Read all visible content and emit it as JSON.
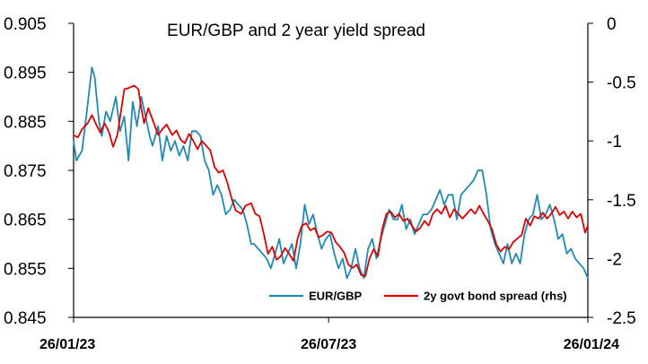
{
  "chart_data": {
    "type": "line",
    "title": "EUR/GBP and 2 year yield spread",
    "xlabel": "",
    "ylabel": "",
    "x_ticks": [
      "26/01/23",
      "26/07/23",
      "26/01/24"
    ],
    "x_range": [
      "2023-01-26",
      "2024-01-26"
    ],
    "y_left": {
      "ylim": [
        0.845,
        0.905
      ],
      "ticks": [
        "0.905",
        "0.895",
        "0.885",
        "0.875",
        "0.865",
        "0.855",
        "0.845"
      ]
    },
    "y_right": {
      "ylim": [
        -2.5,
        0
      ],
      "ticks": [
        "0",
        "-0.5",
        "-1",
        "-1.5",
        "-2",
        "-2.5"
      ]
    },
    "grid": false,
    "legend": {
      "placement": "bottom-right"
    },
    "series": [
      {
        "name": "EUR/GBP",
        "axis": "left",
        "color": "#1f8bb5",
        "points": [
          [
            "2023-01-26",
            0.881
          ],
          [
            "2023-01-28",
            0.877
          ],
          [
            "2023-02-01",
            0.879
          ],
          [
            "2023-02-04",
            0.886
          ],
          [
            "2023-02-08",
            0.896
          ],
          [
            "2023-02-10",
            0.894
          ],
          [
            "2023-02-13",
            0.885
          ],
          [
            "2023-02-15",
            0.882
          ],
          [
            "2023-02-18",
            0.887
          ],
          [
            "2023-02-21",
            0.885
          ],
          [
            "2023-02-25",
            0.89
          ],
          [
            "2023-02-28",
            0.883
          ],
          [
            "2023-03-03",
            0.886
          ],
          [
            "2023-03-06",
            0.877
          ],
          [
            "2023-03-09",
            0.889
          ],
          [
            "2023-03-12",
            0.884
          ],
          [
            "2023-03-15",
            0.89
          ],
          [
            "2023-03-18",
            0.886
          ],
          [
            "2023-03-21",
            0.882
          ],
          [
            "2023-03-23",
            0.88
          ],
          [
            "2023-03-27",
            0.884
          ],
          [
            "2023-03-30",
            0.877
          ],
          [
            "2023-04-02",
            0.882
          ],
          [
            "2023-04-05",
            0.879
          ],
          [
            "2023-04-08",
            0.881
          ],
          [
            "2023-04-11",
            0.878
          ],
          [
            "2023-04-14",
            0.88
          ],
          [
            "2023-04-17",
            0.877
          ],
          [
            "2023-04-20",
            0.883
          ],
          [
            "2023-04-23",
            0.883
          ],
          [
            "2023-04-26",
            0.882
          ],
          [
            "2023-04-29",
            0.877
          ],
          [
            "2023-05-02",
            0.875
          ],
          [
            "2023-05-05",
            0.87
          ],
          [
            "2023-05-08",
            0.872
          ],
          [
            "2023-05-11",
            0.87
          ],
          [
            "2023-05-14",
            0.866
          ],
          [
            "2023-05-17",
            0.867
          ],
          [
            "2023-05-20",
            0.869
          ],
          [
            "2023-05-23",
            0.868
          ],
          [
            "2023-05-26",
            0.867
          ],
          [
            "2023-05-29",
            0.864
          ],
          [
            "2023-06-01",
            0.86
          ],
          [
            "2023-06-03",
            0.86
          ],
          [
            "2023-06-06",
            0.859
          ],
          [
            "2023-06-09",
            0.858
          ],
          [
            "2023-06-12",
            0.857
          ],
          [
            "2023-06-15",
            0.855
          ],
          [
            "2023-06-18",
            0.858
          ],
          [
            "2023-06-21",
            0.861
          ],
          [
            "2023-06-24",
            0.856
          ],
          [
            "2023-06-27",
            0.858
          ],
          [
            "2023-06-30",
            0.86
          ],
          [
            "2023-07-03",
            0.855
          ],
          [
            "2023-07-06",
            0.86
          ],
          [
            "2023-07-09",
            0.868
          ],
          [
            "2023-07-12",
            0.864
          ],
          [
            "2023-07-15",
            0.866
          ],
          [
            "2023-07-18",
            0.862
          ],
          [
            "2023-07-21",
            0.859
          ],
          [
            "2023-07-24",
            0.861
          ],
          [
            "2023-07-27",
            0.862
          ],
          [
            "2023-07-30",
            0.858
          ],
          [
            "2023-08-02",
            0.855
          ],
          [
            "2023-08-05",
            0.857
          ],
          [
            "2023-08-08",
            0.853
          ],
          [
            "2023-08-11",
            0.855
          ],
          [
            "2023-08-14",
            0.859
          ],
          [
            "2023-08-17",
            0.855
          ],
          [
            "2023-08-20",
            0.853
          ],
          [
            "2023-08-23",
            0.859
          ],
          [
            "2023-08-26",
            0.861
          ],
          [
            "2023-08-29",
            0.857
          ],
          [
            "2023-09-01",
            0.861
          ],
          [
            "2023-09-04",
            0.864
          ],
          [
            "2023-09-07",
            0.867
          ],
          [
            "2023-09-10",
            0.865
          ],
          [
            "2023-09-13",
            0.865
          ],
          [
            "2023-09-16",
            0.868
          ],
          [
            "2023-09-19",
            0.863
          ],
          [
            "2023-09-22",
            0.865
          ],
          [
            "2023-09-25",
            0.862
          ],
          [
            "2023-09-28",
            0.864
          ],
          [
            "2023-10-01",
            0.866
          ],
          [
            "2023-10-04",
            0.866
          ],
          [
            "2023-10-07",
            0.867
          ],
          [
            "2023-10-10",
            0.869
          ],
          [
            "2023-10-13",
            0.871
          ],
          [
            "2023-10-16",
            0.868
          ],
          [
            "2023-10-19",
            0.87
          ],
          [
            "2023-10-22",
            0.87
          ],
          [
            "2023-10-25",
            0.865
          ],
          [
            "2023-10-28",
            0.87
          ],
          [
            "2023-10-31",
            0.871
          ],
          [
            "2023-11-03",
            0.872
          ],
          [
            "2023-11-06",
            0.873
          ],
          [
            "2023-11-09",
            0.875
          ],
          [
            "2023-11-12",
            0.875
          ],
          [
            "2023-11-15",
            0.87
          ],
          [
            "2023-11-18",
            0.863
          ],
          [
            "2023-11-21",
            0.86
          ],
          [
            "2023-11-24",
            0.858
          ],
          [
            "2023-11-27",
            0.856
          ],
          [
            "2023-11-30",
            0.86
          ],
          [
            "2023-12-03",
            0.856
          ],
          [
            "2023-12-06",
            0.858
          ],
          [
            "2023-12-09",
            0.856
          ],
          [
            "2023-12-12",
            0.862
          ],
          [
            "2023-12-15",
            0.865
          ],
          [
            "2023-12-18",
            0.866
          ],
          [
            "2023-12-21",
            0.87
          ],
          [
            "2023-12-24",
            0.865
          ],
          [
            "2023-12-27",
            0.866
          ],
          [
            "2023-12-30",
            0.868
          ],
          [
            "2024-01-02",
            0.865
          ],
          [
            "2024-01-05",
            0.861
          ],
          [
            "2024-01-08",
            0.862
          ],
          [
            "2024-01-11",
            0.858
          ],
          [
            "2024-01-14",
            0.859
          ],
          [
            "2024-01-17",
            0.857
          ],
          [
            "2024-01-20",
            0.856
          ],
          [
            "2024-01-23",
            0.855
          ],
          [
            "2024-01-26",
            0.853
          ]
        ]
      },
      {
        "name": "2y govt bond spread (rhs)",
        "axis": "right",
        "color": "#e00000",
        "points": [
          [
            "2023-01-26",
            -0.95
          ],
          [
            "2023-01-29",
            -0.97
          ],
          [
            "2023-02-01",
            -0.9
          ],
          [
            "2023-02-05",
            -0.85
          ],
          [
            "2023-02-08",
            -0.78
          ],
          [
            "2023-02-11",
            -0.86
          ],
          [
            "2023-02-14",
            -0.93
          ],
          [
            "2023-02-17",
            -0.85
          ],
          [
            "2023-02-20",
            -0.92
          ],
          [
            "2023-02-23",
            -1.05
          ],
          [
            "2023-02-26",
            -0.95
          ],
          [
            "2023-02-28",
            -0.8
          ],
          [
            "2023-03-03",
            -0.56
          ],
          [
            "2023-03-06",
            -0.55
          ],
          [
            "2023-03-10",
            -0.53
          ],
          [
            "2023-03-13",
            -0.56
          ],
          [
            "2023-03-15",
            -0.72
          ],
          [
            "2023-03-17",
            -0.85
          ],
          [
            "2023-03-20",
            -0.72
          ],
          [
            "2023-03-24",
            -0.85
          ],
          [
            "2023-03-27",
            -0.95
          ],
          [
            "2023-03-30",
            -0.9
          ],
          [
            "2023-04-02",
            -0.86
          ],
          [
            "2023-04-06",
            -0.95
          ],
          [
            "2023-04-09",
            -0.91
          ],
          [
            "2023-04-12",
            -0.99
          ],
          [
            "2023-04-15",
            -1.02
          ],
          [
            "2023-04-18",
            -0.94
          ],
          [
            "2023-04-21",
            -1.0
          ],
          [
            "2023-04-24",
            -1.07
          ],
          [
            "2023-04-27",
            -1.0
          ],
          [
            "2023-04-30",
            -1.04
          ],
          [
            "2023-05-03",
            -1.08
          ],
          [
            "2023-05-06",
            -1.22
          ],
          [
            "2023-05-09",
            -1.27
          ],
          [
            "2023-05-12",
            -1.25
          ],
          [
            "2023-05-15",
            -1.35
          ],
          [
            "2023-05-18",
            -1.48
          ],
          [
            "2023-05-21",
            -1.59
          ],
          [
            "2023-05-25",
            -1.62
          ],
          [
            "2023-05-28",
            -1.55
          ],
          [
            "2023-06-01",
            -1.53
          ],
          [
            "2023-06-04",
            -1.62
          ],
          [
            "2023-06-07",
            -1.64
          ],
          [
            "2023-06-10",
            -1.79
          ],
          [
            "2023-06-13",
            -1.96
          ],
          [
            "2023-06-16",
            -1.9
          ],
          [
            "2023-06-19",
            -2.01
          ],
          [
            "2023-06-22",
            -1.98
          ],
          [
            "2023-06-25",
            -1.91
          ],
          [
            "2023-06-28",
            -1.96
          ],
          [
            "2023-07-01",
            -2.02
          ],
          [
            "2023-07-04",
            -1.83
          ],
          [
            "2023-07-07",
            -1.72
          ],
          [
            "2023-07-10",
            -1.7
          ],
          [
            "2023-07-13",
            -1.76
          ],
          [
            "2023-07-16",
            -1.74
          ],
          [
            "2023-07-19",
            -1.82
          ],
          [
            "2023-07-22",
            -1.8
          ],
          [
            "2023-07-25",
            -1.77
          ],
          [
            "2023-07-28",
            -1.78
          ],
          [
            "2023-07-31",
            -1.86
          ],
          [
            "2023-08-03",
            -1.9
          ],
          [
            "2023-08-06",
            -1.95
          ],
          [
            "2023-08-09",
            -2.05
          ],
          [
            "2023-08-12",
            -2.08
          ],
          [
            "2023-08-15",
            -2.05
          ],
          [
            "2023-08-18",
            -2.14
          ],
          [
            "2023-08-21",
            -2.15
          ],
          [
            "2023-08-24",
            -2.0
          ],
          [
            "2023-08-27",
            -1.92
          ],
          [
            "2023-08-30",
            -1.98
          ],
          [
            "2023-09-02",
            -1.75
          ],
          [
            "2023-09-05",
            -1.62
          ],
          [
            "2023-09-08",
            -1.6
          ],
          [
            "2023-09-11",
            -1.65
          ],
          [
            "2023-09-14",
            -1.62
          ],
          [
            "2023-09-17",
            -1.68
          ],
          [
            "2023-09-20",
            -1.66
          ],
          [
            "2023-09-23",
            -1.72
          ],
          [
            "2023-09-26",
            -1.77
          ],
          [
            "2023-09-29",
            -1.74
          ],
          [
            "2023-10-02",
            -1.68
          ],
          [
            "2023-10-05",
            -1.72
          ],
          [
            "2023-10-08",
            -1.62
          ],
          [
            "2023-10-11",
            -1.58
          ],
          [
            "2023-10-14",
            -1.62
          ],
          [
            "2023-10-17",
            -1.55
          ],
          [
            "2023-10-20",
            -1.65
          ],
          [
            "2023-10-23",
            -1.58
          ],
          [
            "2023-10-26",
            -1.62
          ],
          [
            "2023-10-29",
            -1.66
          ],
          [
            "2023-11-01",
            -1.62
          ],
          [
            "2023-11-04",
            -1.58
          ],
          [
            "2023-11-07",
            -1.62
          ],
          [
            "2023-11-10",
            -1.55
          ],
          [
            "2023-11-13",
            -1.62
          ],
          [
            "2023-11-16",
            -1.68
          ],
          [
            "2023-11-19",
            -1.75
          ],
          [
            "2023-11-22",
            -1.88
          ],
          [
            "2023-11-25",
            -1.94
          ],
          [
            "2023-11-28",
            -1.9
          ],
          [
            "2023-12-01",
            -1.92
          ],
          [
            "2023-12-04",
            -1.86
          ],
          [
            "2023-12-07",
            -1.83
          ],
          [
            "2023-12-10",
            -1.8
          ],
          [
            "2023-12-13",
            -1.66
          ],
          [
            "2023-12-16",
            -1.72
          ],
          [
            "2023-12-19",
            -1.64
          ],
          [
            "2023-12-22",
            -1.66
          ],
          [
            "2023-12-25",
            -1.61
          ],
          [
            "2023-12-28",
            -1.66
          ],
          [
            "2023-12-31",
            -1.62
          ],
          [
            "2024-01-03",
            -1.56
          ],
          [
            "2024-01-06",
            -1.63
          ],
          [
            "2024-01-09",
            -1.6
          ],
          [
            "2024-01-12",
            -1.66
          ],
          [
            "2024-01-15",
            -1.6
          ],
          [
            "2024-01-18",
            -1.65
          ],
          [
            "2024-01-21",
            -1.62
          ],
          [
            "2024-01-24",
            -1.78
          ],
          [
            "2024-01-26",
            -1.72
          ]
        ]
      }
    ]
  }
}
